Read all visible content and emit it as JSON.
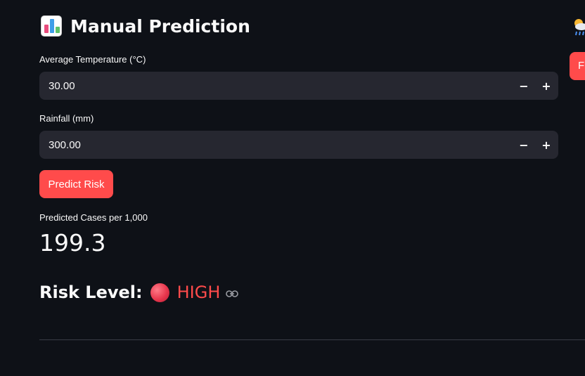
{
  "title": {
    "icon": "bar-chart-emoji",
    "text": "Manual Prediction"
  },
  "side_panel": {
    "icon": "weather-cloud-sun-rain-icon",
    "button_label": "F"
  },
  "fields": {
    "temperature": {
      "label": "Average Temperature (°C)",
      "value": "30.00",
      "minus": "−",
      "plus": "+"
    },
    "rainfall": {
      "label": "Rainfall (mm)",
      "value": "300.00",
      "minus": "−",
      "plus": "+"
    }
  },
  "predict_button": {
    "label": "Predict Risk"
  },
  "metric": {
    "label": "Predicted Cases per 1,000",
    "value": "199.3"
  },
  "risk": {
    "label": "Risk Level:",
    "value": "HIGH",
    "indicator_icon": "red-circle-icon",
    "anchor_icon": "link-icon"
  },
  "colors": {
    "background": "#0e1117",
    "input_bg": "#262730",
    "accent": "#ff4b4b",
    "text": "#fafafa"
  }
}
